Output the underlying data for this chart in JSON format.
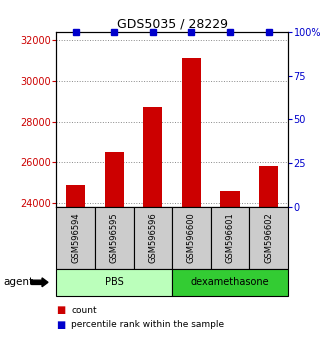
{
  "title": "GDS5035 / 28229",
  "samples": [
    "GSM596594",
    "GSM596595",
    "GSM596596",
    "GSM596600",
    "GSM596601",
    "GSM596602"
  ],
  "counts": [
    24900,
    26500,
    28700,
    31100,
    24600,
    25800
  ],
  "percentile_values": [
    100,
    100,
    100,
    100,
    100,
    100
  ],
  "ylim_left": [
    23800,
    32400
  ],
  "ylim_right": [
    0,
    100
  ],
  "yticks_left": [
    24000,
    26000,
    28000,
    30000,
    32000
  ],
  "yticks_right": [
    0,
    25,
    50,
    75,
    100
  ],
  "ytick_labels_right": [
    "0",
    "25",
    "50",
    "75",
    "100%"
  ],
  "bar_color": "#cc0000",
  "dot_color": "#0000cc",
  "groups": [
    {
      "label": "PBS",
      "indices": [
        0,
        1,
        2
      ],
      "color": "#bbffbb"
    },
    {
      "label": "dexamethasone",
      "indices": [
        3,
        4,
        5
      ],
      "color": "#33cc33"
    }
  ],
  "group_label": "agent",
  "background_color": "#ffffff",
  "sample_box_color": "#cccccc",
  "grid_color": "#888888",
  "bar_width": 0.5
}
